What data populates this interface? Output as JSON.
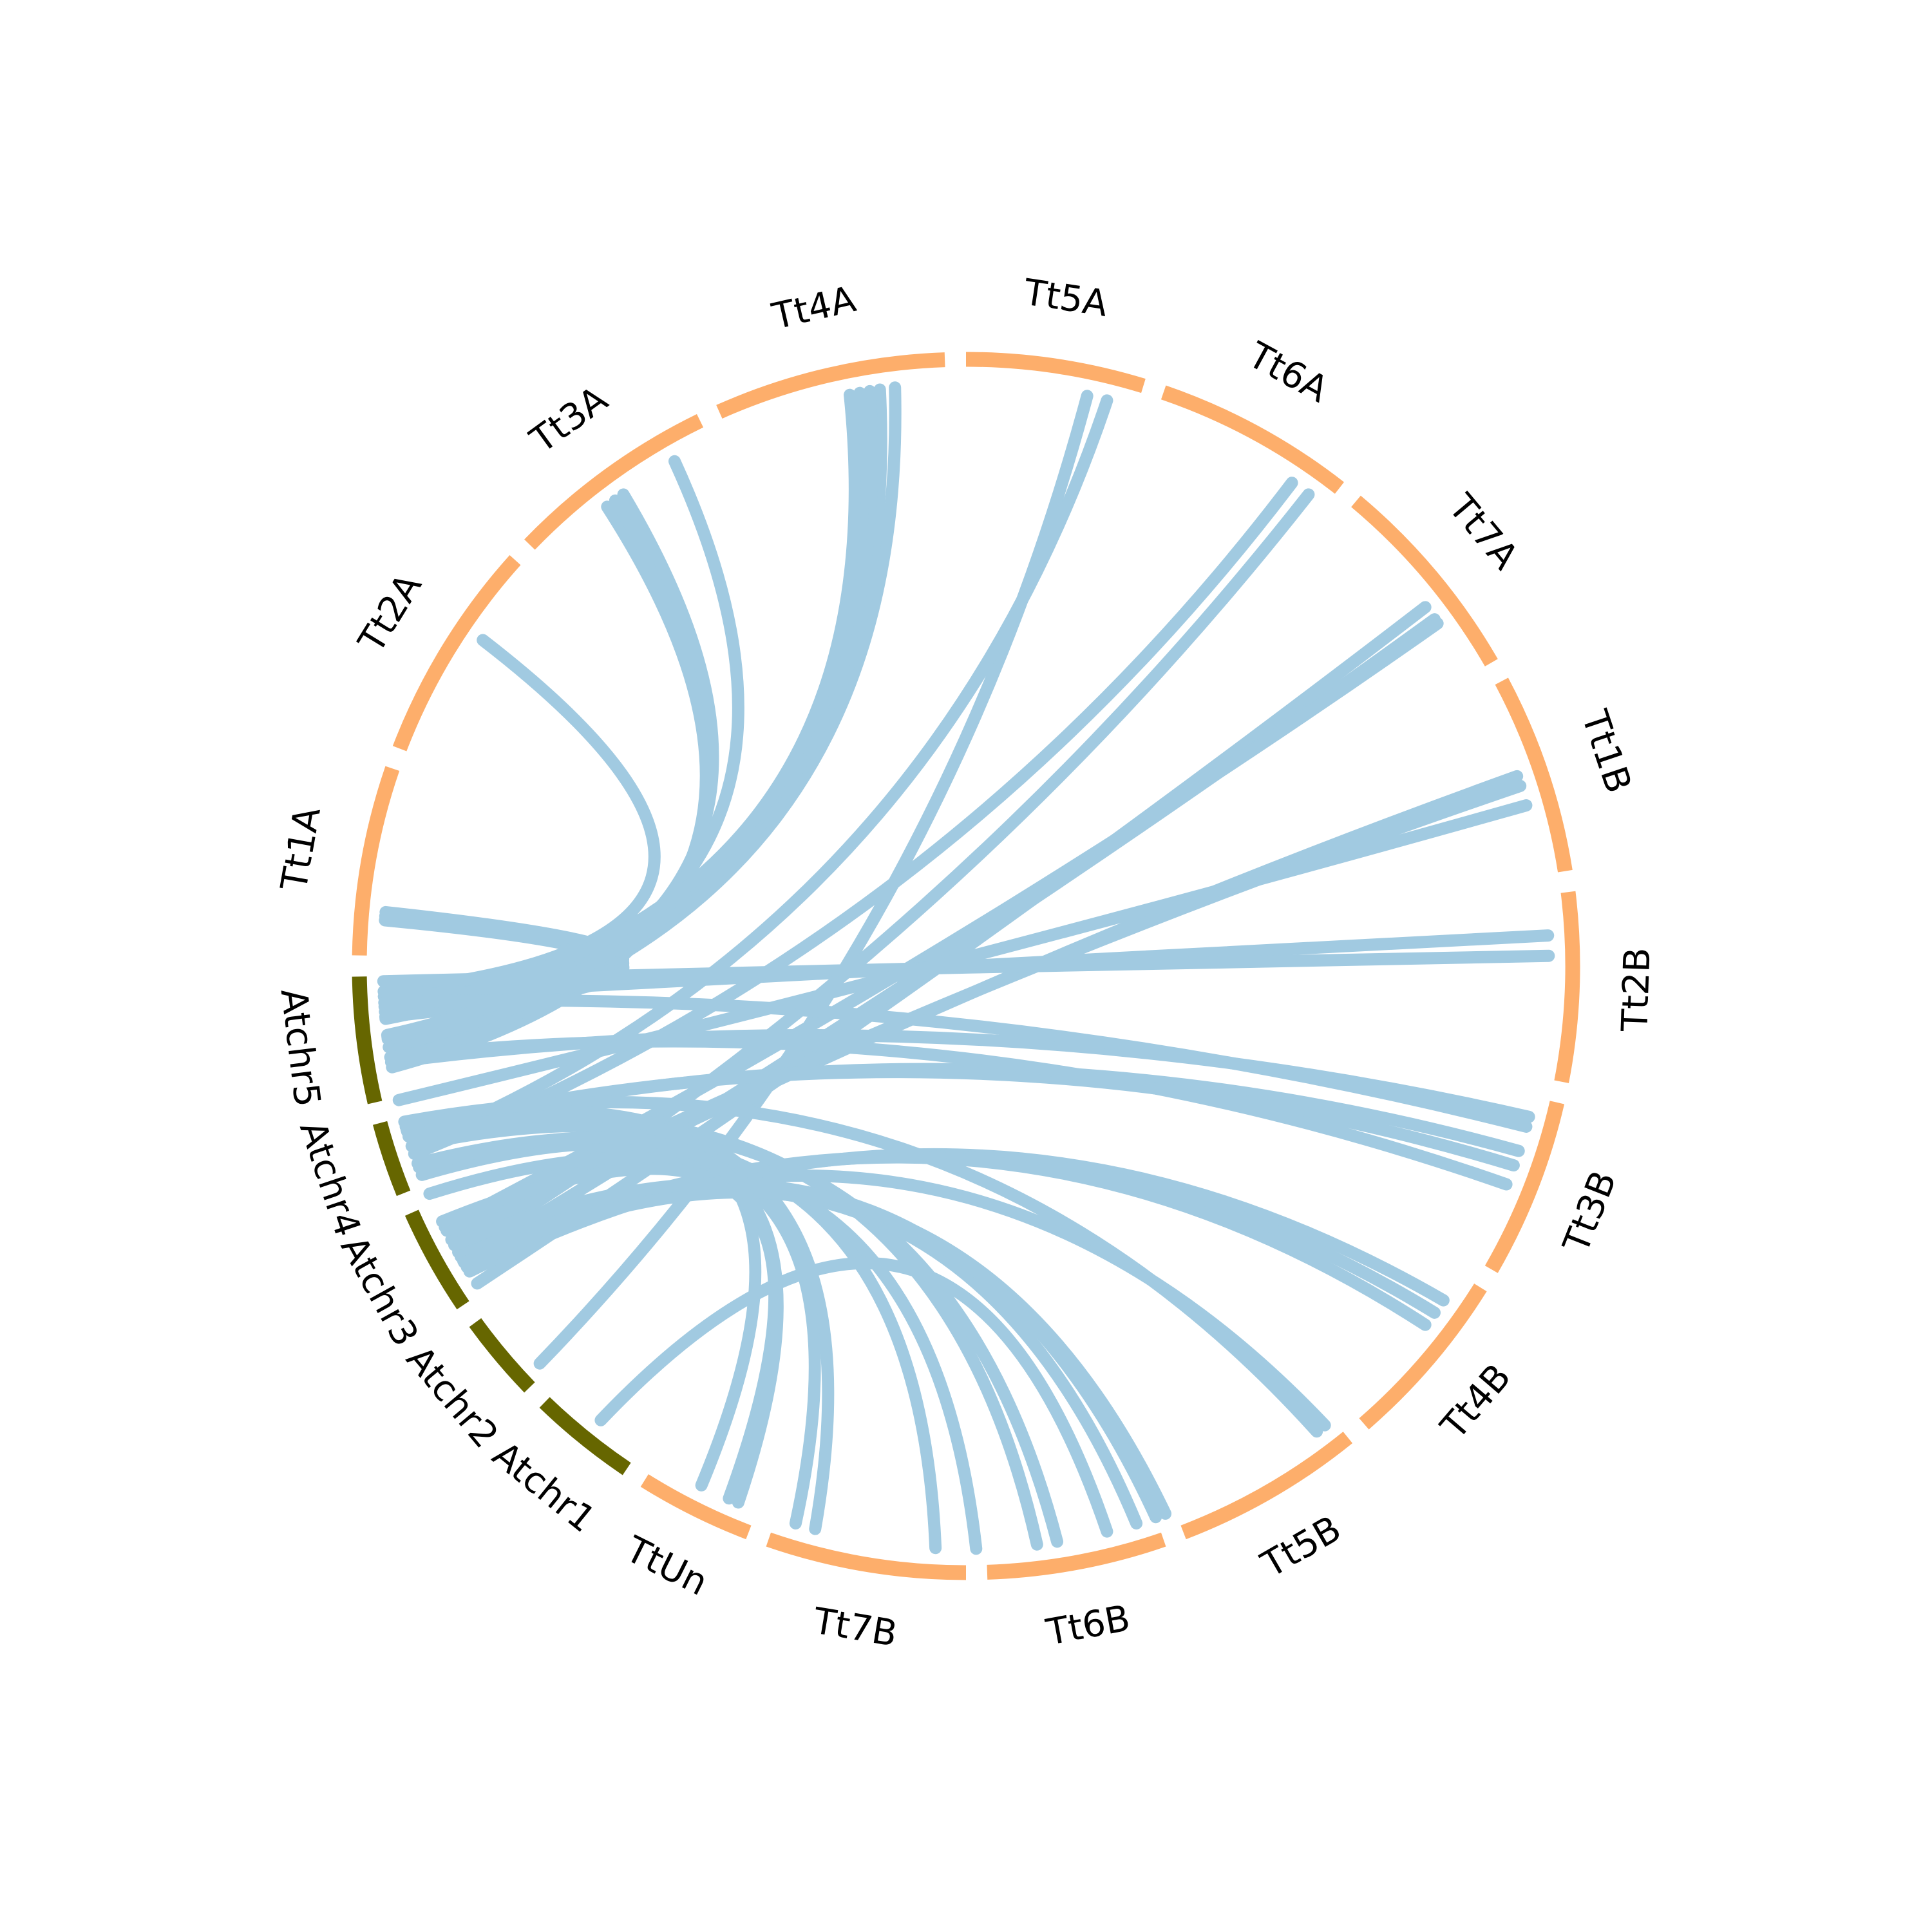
{
  "colors": {
    "genome_a": "#fdae6b",
    "genome_b": "#666600",
    "links": "#a1cae1"
  },
  "segments": [
    {
      "id": "Tt1A",
      "label": "Tt1A",
      "genome": "genome_a",
      "start": 91,
      "end": 109
    },
    {
      "id": "Tt2A",
      "label": "Tt2A",
      "genome": "genome_a",
      "start": 111,
      "end": 132
    },
    {
      "id": "Tt3A",
      "label": "Tt3A",
      "genome": "genome_a",
      "start": 134,
      "end": 154
    },
    {
      "id": "Tt4A",
      "label": "Tt4A",
      "genome": "genome_a",
      "start": 156,
      "end": 178
    },
    {
      "id": "Tt5A",
      "label": "Tt5A",
      "genome": "genome_a",
      "start": 180,
      "end": 197
    },
    {
      "id": "Tt6A",
      "label": "Tt6A",
      "genome": "genome_a",
      "start": 199,
      "end": 218
    },
    {
      "id": "Tt7A",
      "label": "Tt7A",
      "genome": "genome_a",
      "start": 220,
      "end": 240
    },
    {
      "id": "Tt1B",
      "label": "Tt1B",
      "genome": "genome_a",
      "start": 242,
      "end": 261
    },
    {
      "id": "Tt2B",
      "label": "Tt2B",
      "genome": "genome_a",
      "start": 263,
      "end": 281
    },
    {
      "id": "Tt3B",
      "label": "Tt3B",
      "genome": "genome_a",
      "start": 283,
      "end": 300
    },
    {
      "id": "Tt4B",
      "label": "Tt4B",
      "genome": "genome_a",
      "start": 302,
      "end": 319
    },
    {
      "id": "Tt5B",
      "label": "Tt5B",
      "genome": "genome_a",
      "start": 321,
      "end": 339
    },
    {
      "id": "Tt6B",
      "label": "Tt6B",
      "genome": "genome_a",
      "start": 341,
      "end": 358
    },
    {
      "id": "Tt7B",
      "label": "Tt7B",
      "genome": "genome_a",
      "start": 360,
      "end": 379
    },
    {
      "id": "TtUn",
      "label": "TtUn",
      "genome": "genome_a",
      "start": 381,
      "end": 392
    },
    {
      "id": "Atchr1",
      "label": "Atchr1",
      "genome": "genome_b",
      "start": 394,
      "end": 404
    },
    {
      "id": "Atchr2",
      "label": "Atchr2",
      "genome": "genome_b",
      "start": 406,
      "end": 414
    },
    {
      "id": "Atchr3",
      "label": "Atchr3",
      "genome": "genome_b",
      "start": 416,
      "end": 426
    },
    {
      "id": "Atchr4",
      "label": "Atchr4",
      "genome": "genome_b",
      "start": 428,
      "end": 435
    },
    {
      "id": "Atchr5",
      "label": "Atchr5",
      "genome": "genome_b",
      "start": 437,
      "end": 449
    }
  ],
  "links": [
    [
      94.5,
      445
    ],
    [
      94.9,
      446
    ],
    [
      95.3,
      447
    ],
    [
      124,
      447.5
    ],
    [
      142,
      440
    ],
    [
      143,
      441
    ],
    [
      144,
      442
    ],
    [
      150,
      443
    ],
    [
      173,
      442
    ],
    [
      171.5,
      442.8
    ],
    [
      170.5,
      443.2
    ],
    [
      169.5,
      444.8
    ],
    [
      168.5,
      445.5
    ],
    [
      192,
      407
    ],
    [
      194,
      432
    ],
    [
      214,
      431.2
    ],
    [
      216,
      420.6
    ],
    [
      232,
      417
    ],
    [
      233.5,
      419.6
    ],
    [
      234,
      423.4
    ],
    [
      251,
      422
    ],
    [
      252,
      423
    ],
    [
      267,
      447
    ],
    [
      269,
      448.5
    ],
    [
      285,
      440.5
    ],
    [
      286,
      446.4
    ],
    [
      288.5,
      433.5
    ],
    [
      290,
      433.7
    ],
    [
      305,
      418.4
    ],
    [
      306.5,
      418.9
    ],
    [
      308,
      419.5
    ],
    [
      322,
      420.1
    ],
    [
      323,
      434.5
    ],
    [
      353,
      433
    ],
    [
      351,
      432
    ],
    [
      359,
      427
    ],
    [
      363,
      430.2
    ],
    [
      375,
      434
    ],
    [
      377,
      429
    ],
    [
      387,
      433
    ],
    [
      384,
      424
    ],
    [
      346,
      398.8
    ],
    [
      343,
      420.1
    ],
    [
      340,
      419.4
    ],
    [
      341,
      421.4
    ],
    [
      383,
      429.8
    ],
    [
      292,
      441
    ],
    [
      254,
      436.7
    ]
  ]
}
